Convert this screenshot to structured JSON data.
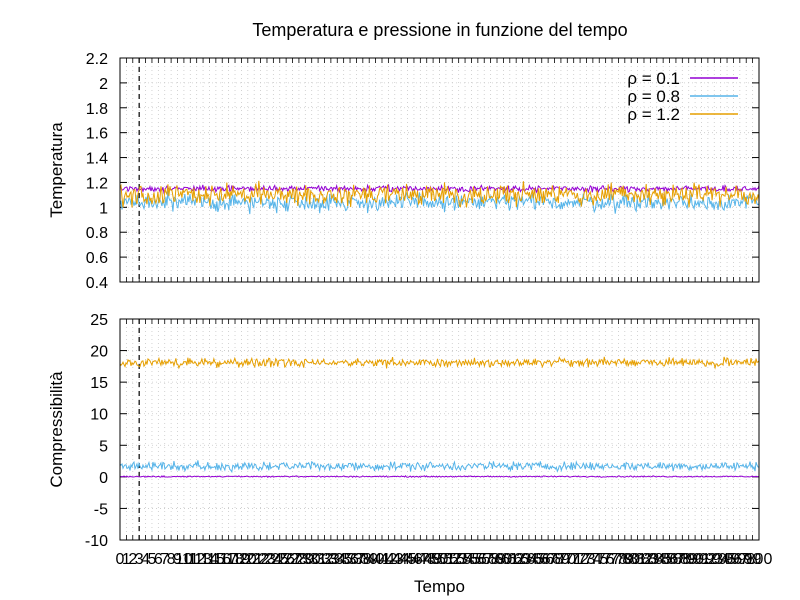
{
  "title": "Temperatura e pressione in funzione del tempo",
  "colors": {
    "rho_0_1": "#9400d3",
    "rho_0_8": "#56b4e9",
    "rho_1_2": "#e69f00"
  },
  "chart_data": [
    {
      "type": "line",
      "title": "Temperatura e pressione in funzione del tempo",
      "xlabel": "",
      "ylabel": "Temperatura",
      "xlim": [
        0,
        100
      ],
      "ylim": [
        0.4,
        2.2
      ],
      "yticks": [
        "0.4",
        "0.6",
        "0.8",
        "1",
        "1.2",
        "1.4",
        "1.6",
        "1.8",
        "2",
        "2.2"
      ],
      "grid": true,
      "legend": "top-right",
      "marker_x": 3,
      "series": [
        {
          "name": "ρ = 0.1",
          "mean": 1.15,
          "noise": 0.012,
          "color": "#9400d3"
        },
        {
          "name": "ρ = 0.8",
          "mean": 1.04,
          "noise": 0.035,
          "color": "#56b4e9"
        },
        {
          "name": "ρ = 1.2",
          "mean": 1.1,
          "noise": 0.04,
          "color": "#e69f00"
        }
      ]
    },
    {
      "type": "line",
      "title": "",
      "xlabel": "Tempo",
      "ylabel": "Compressibilità",
      "xlim": [
        0,
        100
      ],
      "ylim": [
        -10,
        25
      ],
      "yticks": [
        "-10",
        "-5",
        "0",
        "5",
        "10",
        "15",
        "20",
        "25"
      ],
      "xticks": [
        "0",
        "1",
        "2",
        "3",
        "4",
        "5",
        "6",
        "7",
        "8",
        "9",
        "10",
        "11",
        "12",
        "13",
        "14",
        "15",
        "16",
        "17",
        "18",
        "19",
        "20",
        "21",
        "22",
        "23",
        "24",
        "25",
        "26",
        "27",
        "28",
        "29",
        "30",
        "31",
        "32",
        "33",
        "34",
        "35",
        "36",
        "37",
        "38",
        "39",
        "40",
        "41",
        "42",
        "43",
        "44",
        "45",
        "46",
        "47",
        "48",
        "49",
        "50",
        "51",
        "52",
        "53",
        "54",
        "55",
        "56",
        "57",
        "58",
        "59",
        "60",
        "61",
        "62",
        "63",
        "64",
        "65",
        "66",
        "67",
        "68",
        "69",
        "70",
        "71",
        "72",
        "73",
        "74",
        "75",
        "76",
        "77",
        "78",
        "79",
        "80",
        "81",
        "82",
        "83",
        "84",
        "85",
        "86",
        "87",
        "88",
        "89",
        "90",
        "91",
        "92",
        "93",
        "94",
        "95",
        "96",
        "97",
        "98",
        "99",
        "100"
      ],
      "grid": true,
      "marker_x": 3,
      "series": [
        {
          "name": "ρ = 0.1",
          "mean": 0.05,
          "noise": 0.05,
          "color": "#9400d3"
        },
        {
          "name": "ρ = 0.8",
          "mean": 1.7,
          "noise": 0.35,
          "color": "#56b4e9"
        },
        {
          "name": "ρ = 1.2",
          "mean": 18.1,
          "noise": 0.35,
          "color": "#e69f00"
        }
      ]
    }
  ]
}
